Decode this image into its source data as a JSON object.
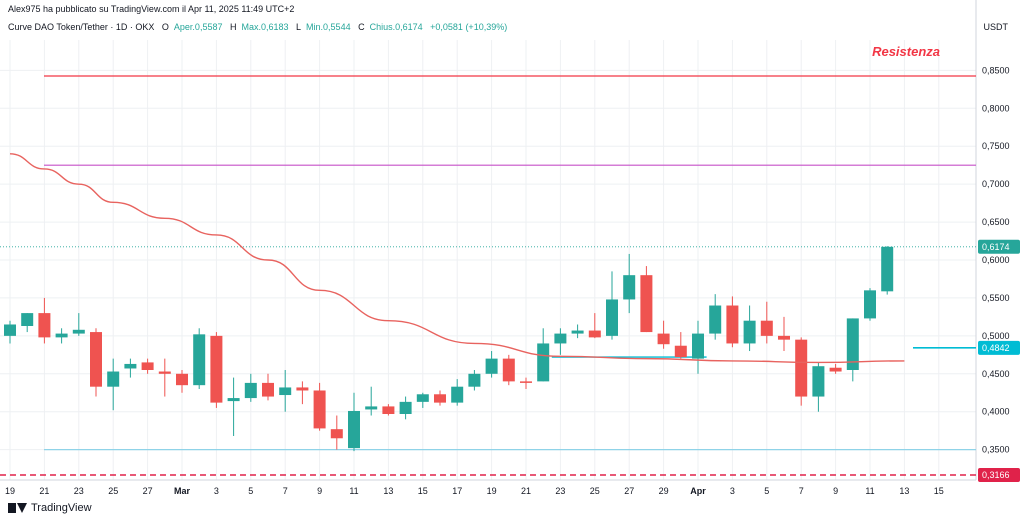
{
  "publisher_line": "Alex975 ha pubblicato su TradingView.com il Apr 11, 2025 11:49 UTC+2",
  "symbol_line": {
    "name": "Curve DAO Token/Tether · 1D · OKX",
    "open_label": "O",
    "open_value": "Aper.0,5587",
    "high_label": "H",
    "high_value": "Max.0,6183",
    "low_label": "L",
    "low_value": "Min.0,5544",
    "close_label": "C",
    "close_value": "Chius.0,6174",
    "change": "+0,0581 (+10,39%)"
  },
  "currency": "USDT",
  "footer_brand": "TradingView",
  "annotation": "Resistenza",
  "colors": {
    "up": "#26a69a",
    "down": "#ef5350",
    "ma": "#e8635f",
    "resistance": "#f23645",
    "purple_line": "#c651c9",
    "support_light": "#8fd3e8",
    "support_dashed": "#e0224a",
    "cyan": "#00bcd4",
    "grid": "#eef0f3"
  },
  "chart_data": {
    "type": "candlestick",
    "title": "Curve DAO Token/Tether · 1D · OKX",
    "ylabel": "USDT",
    "ylim": [
      0.31,
      0.89
    ],
    "yticks": [
      0.35,
      0.4,
      0.45,
      0.5,
      0.55,
      0.6,
      0.65,
      0.7,
      0.75,
      0.8,
      0.85
    ],
    "ytick_labels": [
      "0,3500",
      "0,4000",
      "0,4500",
      "0,5000",
      "0,5500",
      "0,6000",
      "0,6500",
      "0,7000",
      "0,7500",
      "0,8000",
      "0,8500"
    ],
    "xlabels": [
      "19",
      "21",
      "23",
      "25",
      "27",
      "Mar",
      "3",
      "5",
      "7",
      "9",
      "11",
      "13",
      "15",
      "17",
      "19",
      "21",
      "23",
      "25",
      "27",
      "29",
      "Apr",
      "3",
      "5",
      "7",
      "9",
      "11",
      "13",
      "15"
    ],
    "candles": [
      {
        "o": 0.5,
        "h": 0.52,
        "l": 0.49,
        "c": 0.515
      },
      {
        "o": 0.513,
        "h": 0.53,
        "l": 0.505,
        "c": 0.53
      },
      {
        "o": 0.53,
        "h": 0.55,
        "l": 0.49,
        "c": 0.498
      },
      {
        "o": 0.498,
        "h": 0.51,
        "l": 0.49,
        "c": 0.503
      },
      {
        "o": 0.503,
        "h": 0.53,
        "l": 0.5,
        "c": 0.508
      },
      {
        "o": 0.505,
        "h": 0.51,
        "l": 0.42,
        "c": 0.433
      },
      {
        "o": 0.433,
        "h": 0.47,
        "l": 0.402,
        "c": 0.453
      },
      {
        "o": 0.457,
        "h": 0.47,
        "l": 0.445,
        "c": 0.463
      },
      {
        "o": 0.465,
        "h": 0.47,
        "l": 0.45,
        "c": 0.455
      },
      {
        "o": 0.453,
        "h": 0.47,
        "l": 0.42,
        "c": 0.45
      },
      {
        "o": 0.45,
        "h": 0.455,
        "l": 0.425,
        "c": 0.435
      },
      {
        "o": 0.435,
        "h": 0.51,
        "l": 0.43,
        "c": 0.502
      },
      {
        "o": 0.5,
        "h": 0.505,
        "l": 0.405,
        "c": 0.412
      },
      {
        "o": 0.414,
        "h": 0.445,
        "l": 0.368,
        "c": 0.418
      },
      {
        "o": 0.418,
        "h": 0.45,
        "l": 0.413,
        "c": 0.438
      },
      {
        "o": 0.438,
        "h": 0.45,
        "l": 0.415,
        "c": 0.42
      },
      {
        "o": 0.422,
        "h": 0.455,
        "l": 0.4,
        "c": 0.432
      },
      {
        "o": 0.432,
        "h": 0.44,
        "l": 0.41,
        "c": 0.428
      },
      {
        "o": 0.428,
        "h": 0.438,
        "l": 0.375,
        "c": 0.378
      },
      {
        "o": 0.377,
        "h": 0.395,
        "l": 0.35,
        "c": 0.365
      },
      {
        "o": 0.352,
        "h": 0.425,
        "l": 0.348,
        "c": 0.401
      },
      {
        "o": 0.403,
        "h": 0.433,
        "l": 0.395,
        "c": 0.407
      },
      {
        "o": 0.407,
        "h": 0.41,
        "l": 0.395,
        "c": 0.397
      },
      {
        "o": 0.397,
        "h": 0.42,
        "l": 0.39,
        "c": 0.413
      },
      {
        "o": 0.413,
        "h": 0.425,
        "l": 0.405,
        "c": 0.423
      },
      {
        "o": 0.423,
        "h": 0.428,
        "l": 0.408,
        "c": 0.412
      },
      {
        "o": 0.412,
        "h": 0.443,
        "l": 0.408,
        "c": 0.433
      },
      {
        "o": 0.433,
        "h": 0.455,
        "l": 0.428,
        "c": 0.45
      },
      {
        "o": 0.45,
        "h": 0.48,
        "l": 0.445,
        "c": 0.47
      },
      {
        "o": 0.47,
        "h": 0.475,
        "l": 0.435,
        "c": 0.44
      },
      {
        "o": 0.44,
        "h": 0.445,
        "l": 0.43,
        "c": 0.438
      },
      {
        "o": 0.44,
        "h": 0.51,
        "l": 0.44,
        "c": 0.49
      },
      {
        "o": 0.49,
        "h": 0.51,
        "l": 0.475,
        "c": 0.503
      },
      {
        "o": 0.503,
        "h": 0.515,
        "l": 0.497,
        "c": 0.507
      },
      {
        "o": 0.507,
        "h": 0.53,
        "l": 0.497,
        "c": 0.498
      },
      {
        "o": 0.5,
        "h": 0.585,
        "l": 0.495,
        "c": 0.548
      },
      {
        "o": 0.548,
        "h": 0.608,
        "l": 0.53,
        "c": 0.58
      },
      {
        "o": 0.58,
        "h": 0.592,
        "l": 0.505,
        "c": 0.505
      },
      {
        "o": 0.503,
        "h": 0.52,
        "l": 0.483,
        "c": 0.489
      },
      {
        "o": 0.487,
        "h": 0.505,
        "l": 0.47,
        "c": 0.472
      },
      {
        "o": 0.47,
        "h": 0.52,
        "l": 0.45,
        "c": 0.503
      },
      {
        "o": 0.503,
        "h": 0.555,
        "l": 0.495,
        "c": 0.54
      },
      {
        "o": 0.54,
        "h": 0.552,
        "l": 0.485,
        "c": 0.49
      },
      {
        "o": 0.49,
        "h": 0.54,
        "l": 0.48,
        "c": 0.52
      },
      {
        "o": 0.52,
        "h": 0.545,
        "l": 0.49,
        "c": 0.5
      },
      {
        "o": 0.5,
        "h": 0.525,
        "l": 0.48,
        "c": 0.495
      },
      {
        "o": 0.495,
        "h": 0.498,
        "l": 0.408,
        "c": 0.42
      },
      {
        "o": 0.42,
        "h": 0.465,
        "l": 0.4,
        "c": 0.46
      },
      {
        "o": 0.458,
        "h": 0.463,
        "l": 0.45,
        "c": 0.453
      },
      {
        "o": 0.455,
        "h": 0.523,
        "l": 0.44,
        "c": 0.523
      },
      {
        "o": 0.523,
        "h": 0.563,
        "l": 0.52,
        "c": 0.56
      },
      {
        "o": 0.5587,
        "h": 0.6183,
        "l": 0.5544,
        "c": 0.6174
      }
    ],
    "ma": [
      0.74,
      0.72,
      0.7,
      0.676,
      0.655,
      0.633,
      0.6,
      0.56,
      0.52,
      0.49,
      0.473,
      0.47,
      0.467,
      0.465,
      0.467
    ],
    "ma_x": [
      0,
      2,
      4,
      6,
      9,
      12,
      15,
      18,
      22,
      27,
      32,
      37,
      42,
      47,
      52
    ],
    "hlines": [
      {
        "value": 0.8425,
        "style": "solid",
        "color_key": "resistance"
      },
      {
        "value": 0.725,
        "style": "solid",
        "color_key": "purple_line"
      },
      {
        "value": 0.35,
        "style": "solid",
        "color_key": "support_light"
      },
      {
        "value": 0.3166,
        "style": "dashed",
        "color_key": "support_dashed",
        "label": "0,3166"
      }
    ],
    "segments": [
      {
        "x0": 31.5,
        "x1": 40.5,
        "value": 0.472
      }
    ],
    "price_tags": [
      {
        "value": 0.6174,
        "label": "0,6174",
        "color_key": "up"
      },
      {
        "value": 0.4842,
        "label": "0,4842",
        "color_key": "cyan"
      }
    ],
    "last_price_line": 0.6174,
    "grid": true
  }
}
